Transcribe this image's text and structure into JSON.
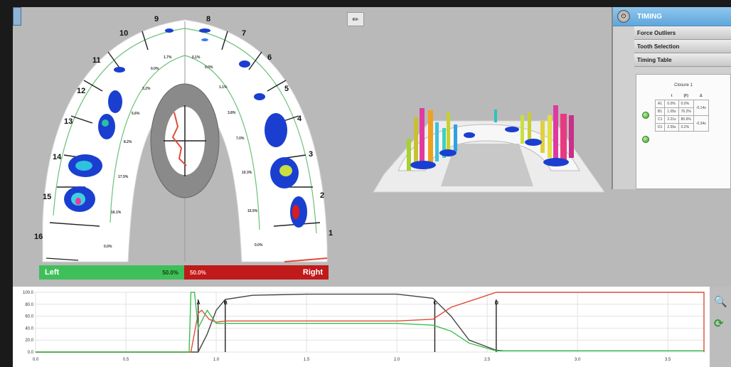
{
  "panel": {
    "title": "TIMING",
    "gear_icon": "gear-icon",
    "sections": [
      "Force Outliers",
      "Tooth Selection",
      "Timing Table"
    ],
    "closure_title": "Closure 1",
    "table_headers": [
      "t",
      "(F)",
      "Δ"
    ],
    "rows": [
      {
        "id": "A1",
        "t": "0.0%",
        "f": "0.0%",
        "d": "-0.14s"
      },
      {
        "id": "B1",
        "t": "1.05s",
        "f": "76.2%",
        "d": ""
      },
      {
        "id": "C1",
        "t": "2.21s",
        "f": "85.6%",
        "d": "-0.34s"
      },
      {
        "id": "D1",
        "t": "2.55s",
        "f": "0.2%",
        "d": ""
      }
    ]
  },
  "balance": {
    "left_label": "Left",
    "left_pct": "50.0%",
    "right_pct": "50.0%",
    "right_label": "Right"
  },
  "arch": {
    "teeth_left": [
      "9",
      "10",
      "11",
      "12",
      "13",
      "14",
      "15",
      "16"
    ],
    "teeth_right": [
      "8",
      "7",
      "6",
      "5",
      "4",
      "3",
      "2",
      "1"
    ],
    "percent_left": [
      "1.7%",
      "0.0%",
      "3.2%",
      "5.6%",
      "8.2%",
      "17.5%",
      "16.1%",
      "0.0%"
    ],
    "percent_right": [
      "0.1%",
      "0.0%",
      "1.1%",
      "3.8%",
      "7.0%",
      "10.3%",
      "15.5%",
      "0.0%"
    ]
  },
  "chart_data": {
    "type": "line",
    "x_ticks": [
      "0.0",
      "0.5",
      "1.0",
      "1.5",
      "2.0",
      "2.5",
      "3.0",
      "3.5"
    ],
    "y_ticks": [
      "0.0",
      "20.0",
      "40.0",
      "60.0",
      "80.0",
      "100.0"
    ],
    "xlim": [
      0,
      3.7
    ],
    "ylim": [
      0,
      100
    ],
    "markers": [
      {
        "label": "A",
        "x": 0.9
      },
      {
        "label": "B",
        "x": 1.05
      },
      {
        "label": "C",
        "x": 2.21
      },
      {
        "label": "D",
        "x": 2.55
      }
    ],
    "series": [
      {
        "color": "#444444",
        "x": [
          0,
          0.9,
          0.95,
          1.0,
          1.05,
          1.2,
          1.5,
          2.0,
          2.2,
          2.3,
          2.4,
          2.55,
          2.6,
          3.7
        ],
        "y": [
          0,
          0,
          30,
          70,
          88,
          95,
          97,
          97,
          90,
          60,
          20,
          3,
          2,
          2
        ]
      },
      {
        "color": "#e14b3a",
        "x": [
          0,
          0.86,
          0.9,
          0.92,
          0.96,
          1.0,
          1.05,
          1.2,
          2.0,
          2.2,
          2.3,
          2.45,
          2.55,
          3.7,
          3.7
        ],
        "y": [
          0,
          0,
          65,
          70,
          55,
          50,
          52,
          52,
          52,
          55,
          75,
          90,
          100,
          100,
          0
        ]
      },
      {
        "color": "#3cbf4f",
        "x": [
          0,
          0.85,
          0.86,
          0.88,
          0.9,
          0.95,
          1.0,
          1.05,
          1.2,
          2.0,
          2.2,
          2.3,
          2.4,
          2.55,
          3.7
        ],
        "y": [
          0,
          0,
          100,
          100,
          40,
          70,
          48,
          48,
          48,
          48,
          45,
          35,
          15,
          2,
          2
        ]
      }
    ]
  }
}
